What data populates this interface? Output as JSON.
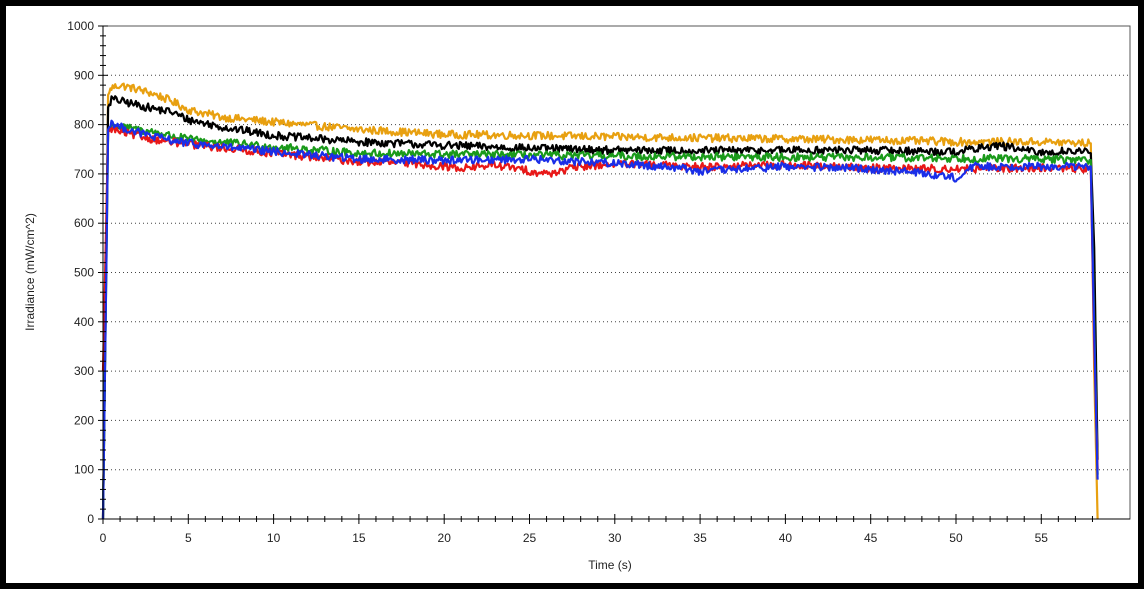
{
  "chart_data": {
    "type": "line",
    "title": "",
    "xlabel": "Time (s)",
    "ylabel": "Irradiance (mW/cm^2)",
    "xlim": [
      0,
      60.2
    ],
    "ylim": [
      0,
      1000
    ],
    "xticks": [
      0,
      5,
      10,
      15,
      20,
      25,
      30,
      35,
      40,
      45,
      50,
      55
    ],
    "yticks": [
      0,
      100,
      200,
      300,
      400,
      500,
      600,
      700,
      800,
      900,
      1000
    ],
    "xtick_labels": [
      "0",
      "5",
      "10",
      "15",
      "20",
      "25",
      "30",
      "35",
      "40",
      "45",
      "50",
      "55"
    ],
    "ytick_labels": [
      "0",
      "100",
      "200",
      "300",
      "400",
      "500",
      "600",
      "700",
      "800",
      "900",
      "1000"
    ],
    "grid": "horizontal dotted",
    "legend": "none",
    "series": [
      {
        "color": "#e8a010",
        "x": [
          0,
          0.3,
          0.5,
          1,
          2,
          3,
          4,
          5,
          7,
          10,
          15,
          20,
          25,
          30,
          35,
          40,
          45,
          50,
          55,
          57.9,
          58.1,
          58.3
        ],
        "y": [
          0,
          860,
          875,
          880,
          872,
          862,
          848,
          830,
          815,
          805,
          790,
          780,
          778,
          775,
          773,
          771,
          769,
          765,
          765,
          762,
          300,
          0
        ]
      },
      {
        "color": "#000000",
        "x": [
          0,
          0.3,
          0.5,
          1,
          2,
          3,
          4,
          5,
          7,
          10,
          15,
          20,
          25,
          30,
          35,
          40,
          45,
          50,
          52.5,
          55,
          57,
          57.9,
          58.1,
          58.3
        ],
        "y": [
          0,
          835,
          852,
          848,
          840,
          832,
          826,
          810,
          795,
          778,
          765,
          758,
          752,
          748,
          747,
          748,
          748,
          745,
          758,
          742,
          748,
          742,
          550,
          120
        ]
      },
      {
        "color": "#1a9a1a",
        "x": [
          0,
          0.3,
          0.5,
          1,
          3,
          5,
          10,
          15,
          20,
          25,
          30,
          35,
          40,
          45,
          50,
          55,
          57.9,
          58.1,
          58.3
        ],
        "y": [
          0,
          785,
          798,
          795,
          785,
          770,
          755,
          742,
          740,
          738,
          736,
          735,
          734,
          733,
          732,
          730,
          728,
          400,
          90
        ]
      },
      {
        "color": "#e81818",
        "x": [
          0,
          0.3,
          0.5,
          1,
          3,
          5,
          10,
          15,
          18,
          21,
          23,
          26,
          28,
          30,
          35,
          40,
          45,
          50,
          55,
          57.9,
          58.1,
          58.3
        ],
        "y": [
          300,
          785,
          792,
          785,
          770,
          760,
          742,
          725,
          722,
          712,
          718,
          700,
          715,
          720,
          715,
          718,
          712,
          710,
          712,
          710,
          350,
          100
        ]
      },
      {
        "color": "#1a2ee8",
        "x": [
          0,
          0.3,
          0.5,
          1,
          3,
          5,
          10,
          15,
          20,
          25,
          30,
          34,
          35,
          40,
          45,
          48,
          50,
          51,
          55,
          57.9,
          58.1,
          58.3
        ],
        "y": [
          0,
          790,
          805,
          795,
          775,
          762,
          745,
          730,
          728,
          730,
          722,
          712,
          705,
          715,
          710,
          702,
          692,
          715,
          715,
          715,
          380,
          80
        ]
      }
    ]
  }
}
